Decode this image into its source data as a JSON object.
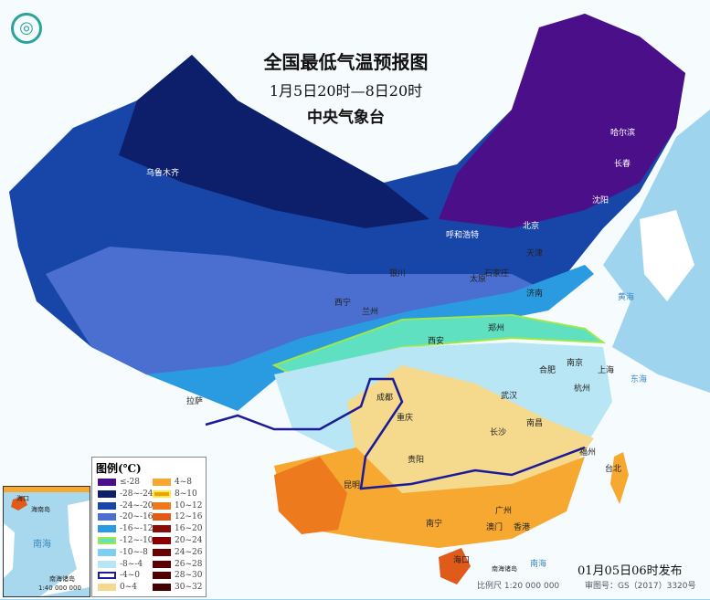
{
  "title": "全国最低气温预报图",
  "period": "1月5日20时—8日20时",
  "issuer": "中央气象台",
  "issued_time": "01月05日06时发布",
  "scale": "比例尺 1:20 000 000",
  "review_no": "审图号：GS（2017）3320号",
  "legend": {
    "title": "图例(℃)",
    "items": [
      {
        "label": "≤-28",
        "color": "#4b0f8a"
      },
      {
        "label": "-28~-24",
        "color": "#0d1f6b"
      },
      {
        "label": "-24~-20",
        "color": "#1846a8"
      },
      {
        "label": "-20~-16",
        "color": "#4a6fd0"
      },
      {
        "label": "-16~-12",
        "color": "#2a9be0"
      },
      {
        "label": "-12~-10",
        "color": "#5fe0c0",
        "border": "#9ee84a"
      },
      {
        "label": "-10~-8",
        "color": "#7ad0f0"
      },
      {
        "label": "-8~-4",
        "color": "#b8e6f4"
      },
      {
        "label": "-4~0",
        "color": "#ffffff",
        "border": "#1a1a9a"
      },
      {
        "label": "0~4",
        "color": "#f5d98c"
      },
      {
        "label": "4~8",
        "color": "#f6a830"
      },
      {
        "label": "8~10",
        "color": "#f2a000",
        "border": "#ffe84a"
      },
      {
        "label": "10~12",
        "color": "#ee7a1e"
      },
      {
        "label": "12~16",
        "color": "#e05a1a"
      },
      {
        "label": "16~20",
        "color": "#8b0a0a"
      },
      {
        "label": "20~24",
        "color": "#8a0000"
      },
      {
        "label": "24~26",
        "color": "#6a0000"
      },
      {
        "label": "26~28",
        "color": "#5a0000"
      },
      {
        "label": "28~30",
        "color": "#500000"
      },
      {
        "label": "30~32",
        "color": "#450000"
      }
    ]
  },
  "cities": [
    "哈尔滨",
    "长春",
    "沈阳",
    "乌鲁木齐",
    "呼和浩特",
    "北京",
    "天津",
    "银川",
    "太原",
    "石家庄",
    "济南",
    "西宁",
    "兰州",
    "西安",
    "郑州",
    "合肥",
    "南京",
    "上海",
    "杭州",
    "武汉",
    "成都",
    "重庆",
    "拉萨",
    "长沙",
    "南昌",
    "贵阳",
    "福州",
    "台北",
    "昆明",
    "南宁",
    "广州",
    "香港",
    "澳门",
    "海口",
    "南海",
    "东海",
    "黄海",
    "南海诸岛"
  ],
  "inset": {
    "title": "南海诸岛",
    "scale": "1:40 000 000",
    "sea": "南海",
    "city": "海口",
    "island": "海南岛"
  }
}
